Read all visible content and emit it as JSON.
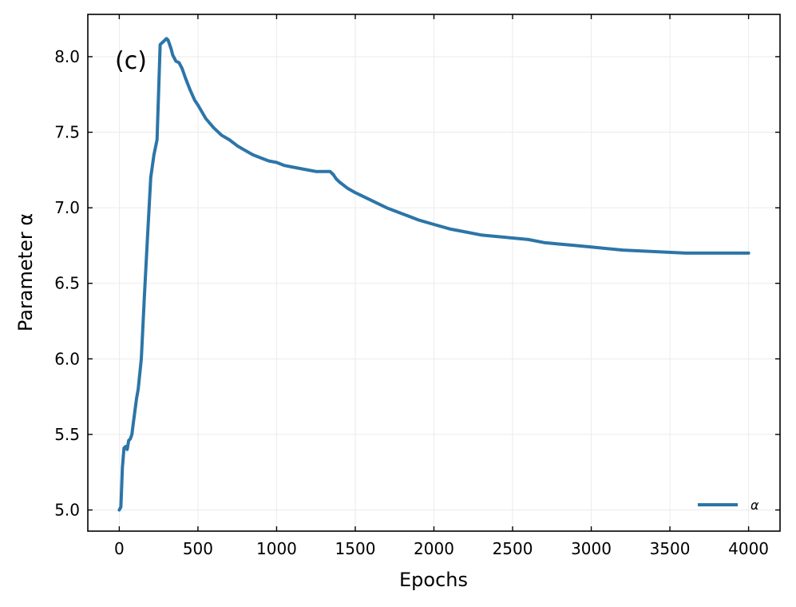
{
  "chart_data": {
    "type": "line",
    "panel_label": "(c)",
    "xlabel": "Epochs",
    "ylabel": "Parameter α",
    "xlim": [
      -200,
      4200
    ],
    "ylim": [
      4.86,
      8.28
    ],
    "xticks": [
      0,
      500,
      1000,
      1500,
      2000,
      2500,
      3000,
      3500,
      4000
    ],
    "xtick_labels": [
      "0",
      "500",
      "1000",
      "1500",
      "2000",
      "2500",
      "3000",
      "3500",
      "4000"
    ],
    "yticks": [
      5.0,
      5.5,
      6.0,
      6.5,
      7.0,
      7.5,
      8.0
    ],
    "ytick_labels": [
      "5.0",
      "5.5",
      "6.0",
      "6.5",
      "7.0",
      "7.5",
      "8.0"
    ],
    "grid": true,
    "legend_position": "bottom-right",
    "series": [
      {
        "name": "α",
        "color": "#2c75a8",
        "x": [
          0,
          10,
          20,
          30,
          40,
          50,
          60,
          70,
          80,
          90,
          100,
          110,
          120,
          140,
          160,
          180,
          200,
          220,
          240,
          260,
          280,
          290,
          300,
          310,
          320,
          330,
          340,
          360,
          380,
          400,
          420,
          450,
          480,
          500,
          550,
          600,
          650,
          700,
          750,
          800,
          850,
          900,
          950,
          1000,
          1050,
          1100,
          1150,
          1200,
          1250,
          1300,
          1340,
          1360,
          1380,
          1400,
          1450,
          1500,
          1600,
          1700,
          1800,
          1900,
          2000,
          2100,
          2200,
          2300,
          2400,
          2500,
          2600,
          2700,
          2800,
          2900,
          3000,
          3200,
          3400,
          3600,
          3800,
          4000
        ],
        "y": [
          5.0,
          5.02,
          5.28,
          5.41,
          5.42,
          5.4,
          5.46,
          5.47,
          5.5,
          5.58,
          5.66,
          5.74,
          5.8,
          6.0,
          6.42,
          6.82,
          7.2,
          7.35,
          7.45,
          8.08,
          8.1,
          8.11,
          8.12,
          8.11,
          8.08,
          8.05,
          8.01,
          7.97,
          7.96,
          7.92,
          7.86,
          7.78,
          7.71,
          7.68,
          7.59,
          7.53,
          7.48,
          7.45,
          7.41,
          7.38,
          7.35,
          7.33,
          7.31,
          7.3,
          7.28,
          7.27,
          7.26,
          7.25,
          7.24,
          7.24,
          7.24,
          7.22,
          7.19,
          7.17,
          7.13,
          7.1,
          7.05,
          7.0,
          6.96,
          6.92,
          6.89,
          6.86,
          6.84,
          6.82,
          6.81,
          6.8,
          6.79,
          6.77,
          6.76,
          6.75,
          6.74,
          6.72,
          6.71,
          6.7,
          6.7,
          6.7
        ]
      }
    ]
  }
}
